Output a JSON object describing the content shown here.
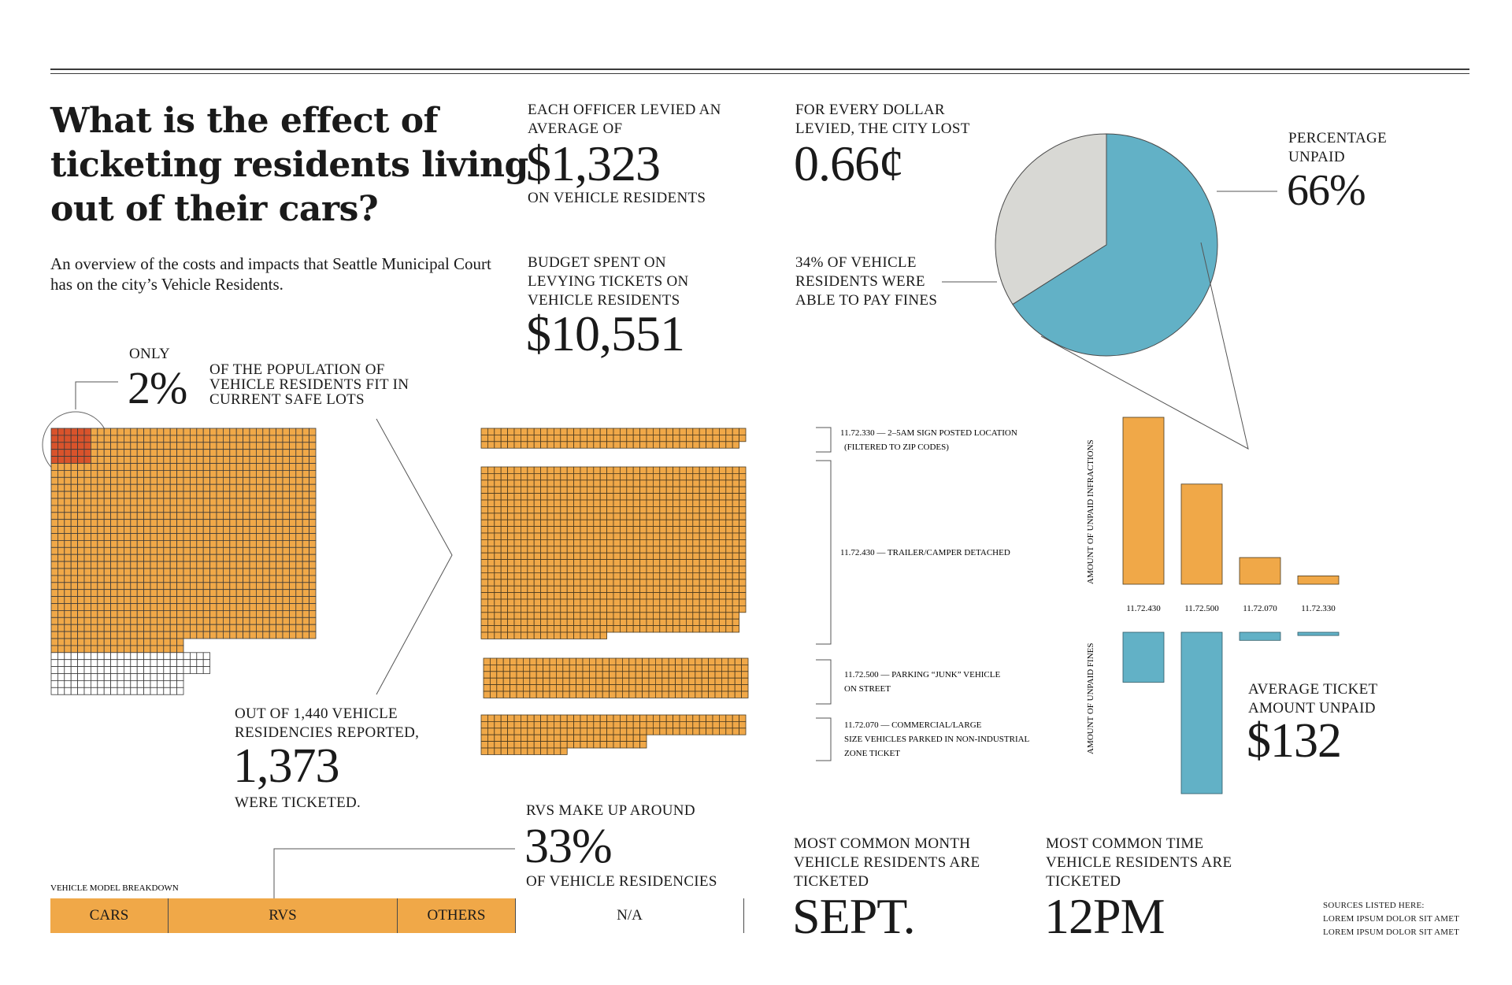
{
  "title": "What is the effect of ticketing residents living out of their cars?",
  "subtitle": "An overview of the costs and impacts that Seattle Municipal Court has on the city’s Vehicle Residents.",
  "stats": {
    "officer": {
      "top": "EACH OFFICER LEVIED AN AVERAGE OF",
      "value": "$1,323",
      "bottom": "ON VEHICLE RESIDENTS"
    },
    "dollar": {
      "top": "FOR EVERY DOLLAR LEVIED, THE CITY LOST",
      "value": "0.66¢"
    },
    "budget": {
      "top": "BUDGET SPENT ON LEVYING TICKETS ON VEHICLE RESIDENTS",
      "value": "$10,551"
    },
    "paid_fines": {
      "label": "34% OF VEHICLE RESIDENTS WERE ABLE TO PAY FINES"
    },
    "unpaid": {
      "label": "PERCENTAGE UNPAID",
      "value": "66%"
    },
    "safe_lots": {
      "only": "ONLY",
      "value": "2%",
      "label": "OF THE POPULATION OF VEHICLE RESIDENTS FIT IN CURRENT SAFE LOTS"
    },
    "ticketed": {
      "top": "OUT OF 1,440 VEHICLE RESIDENCIES REPORTED,",
      "value": "1,373",
      "bottom": "WERE TICKETED."
    },
    "rvs": {
      "top": "RVs MAKE UP AROUND",
      "value": "33%",
      "bottom": "OF VEHICLE RESIDENCIES"
    },
    "avg_ticket": {
      "top": "AVERAGE TICKET AMOUNT UNPAID",
      "value": "$132"
    },
    "month": {
      "top": "MOST COMMON MONTH VEHICLE RESIDENTS ARE TICKETED",
      "value": "SEPT."
    },
    "time": {
      "top": "MOST COMMON TIME VEHICLE RESIDENTS ARE TICKETED",
      "value": "12PM"
    }
  },
  "sources": {
    "line1": "SOURCES LISTED HERE:",
    "line2": "LOREM IPSUM DOLOR SIT AMET",
    "line3": "LOREM IPSUM DOLOR SIT AMET"
  },
  "colors": {
    "orange": "#F0A848",
    "blue": "#62B1C6",
    "gray": "#D8D8D4",
    "red": "#D9532B",
    "ink": "#3a3a3a"
  },
  "chart_data": [
    {
      "type": "pie",
      "slices": [
        {
          "label": "PERCENTAGE UNPAID",
          "value": 66,
          "color": "#62B1C6"
        },
        {
          "label": "34% OF VEHICLE RESIDENTS WERE ABLE TO PAY FINES",
          "value": 34,
          "color": "#D8D8D4"
        }
      ]
    },
    {
      "type": "waffle",
      "total": 1440,
      "ticketed": 1373,
      "safe_lot_share_percent": 2
    },
    {
      "type": "waffle",
      "groups": [
        {
          "code": "11.72.330",
          "label_line1": "11.72.330 — 2–5AM SIGN POSTED LOCATION",
          "label_line2": "(FILTERED TO ZIP CODES)",
          "rows": 2
        },
        {
          "code": "11.72.430",
          "label_line1": "11.72.430 — TRAILER/CAMPER DETACHED",
          "label_line2": "",
          "rows": 15
        },
        {
          "code": "11.72.500",
          "label_line1": "11.72.500 — PARKING “JUNK” VEHICLE",
          "label_line2": "ON STREET",
          "rows": 4
        },
        {
          "code": "11.72.070",
          "label_line1": "11.72.070 — COMMERCIAL/LARGE",
          "label_line2": "SIZE VEHICLES PARKED IN NON-INDUSTRIAL",
          "label_line3": "ZONE TICKET",
          "rows": 3
        }
      ]
    },
    {
      "type": "bar",
      "categories": [
        "11.72.430",
        "11.72.500",
        "11.72.070",
        "11.72.330"
      ],
      "series": [
        {
          "name": "AMOUNT OF UNPAID INFRACTIONS",
          "values": [
            100,
            60,
            16,
            5
          ]
        },
        {
          "name": "AMOUNT OF UNPAID FINES",
          "values": [
            31,
            100,
            5,
            2
          ]
        }
      ]
    },
    {
      "type": "bar",
      "title": "VEHICLE MODEL BREAKDOWN",
      "categories": [
        "CARS",
        "RVs",
        "OTHERS",
        "N/A"
      ],
      "values": [
        17,
        33,
        17,
        33
      ]
    }
  ]
}
